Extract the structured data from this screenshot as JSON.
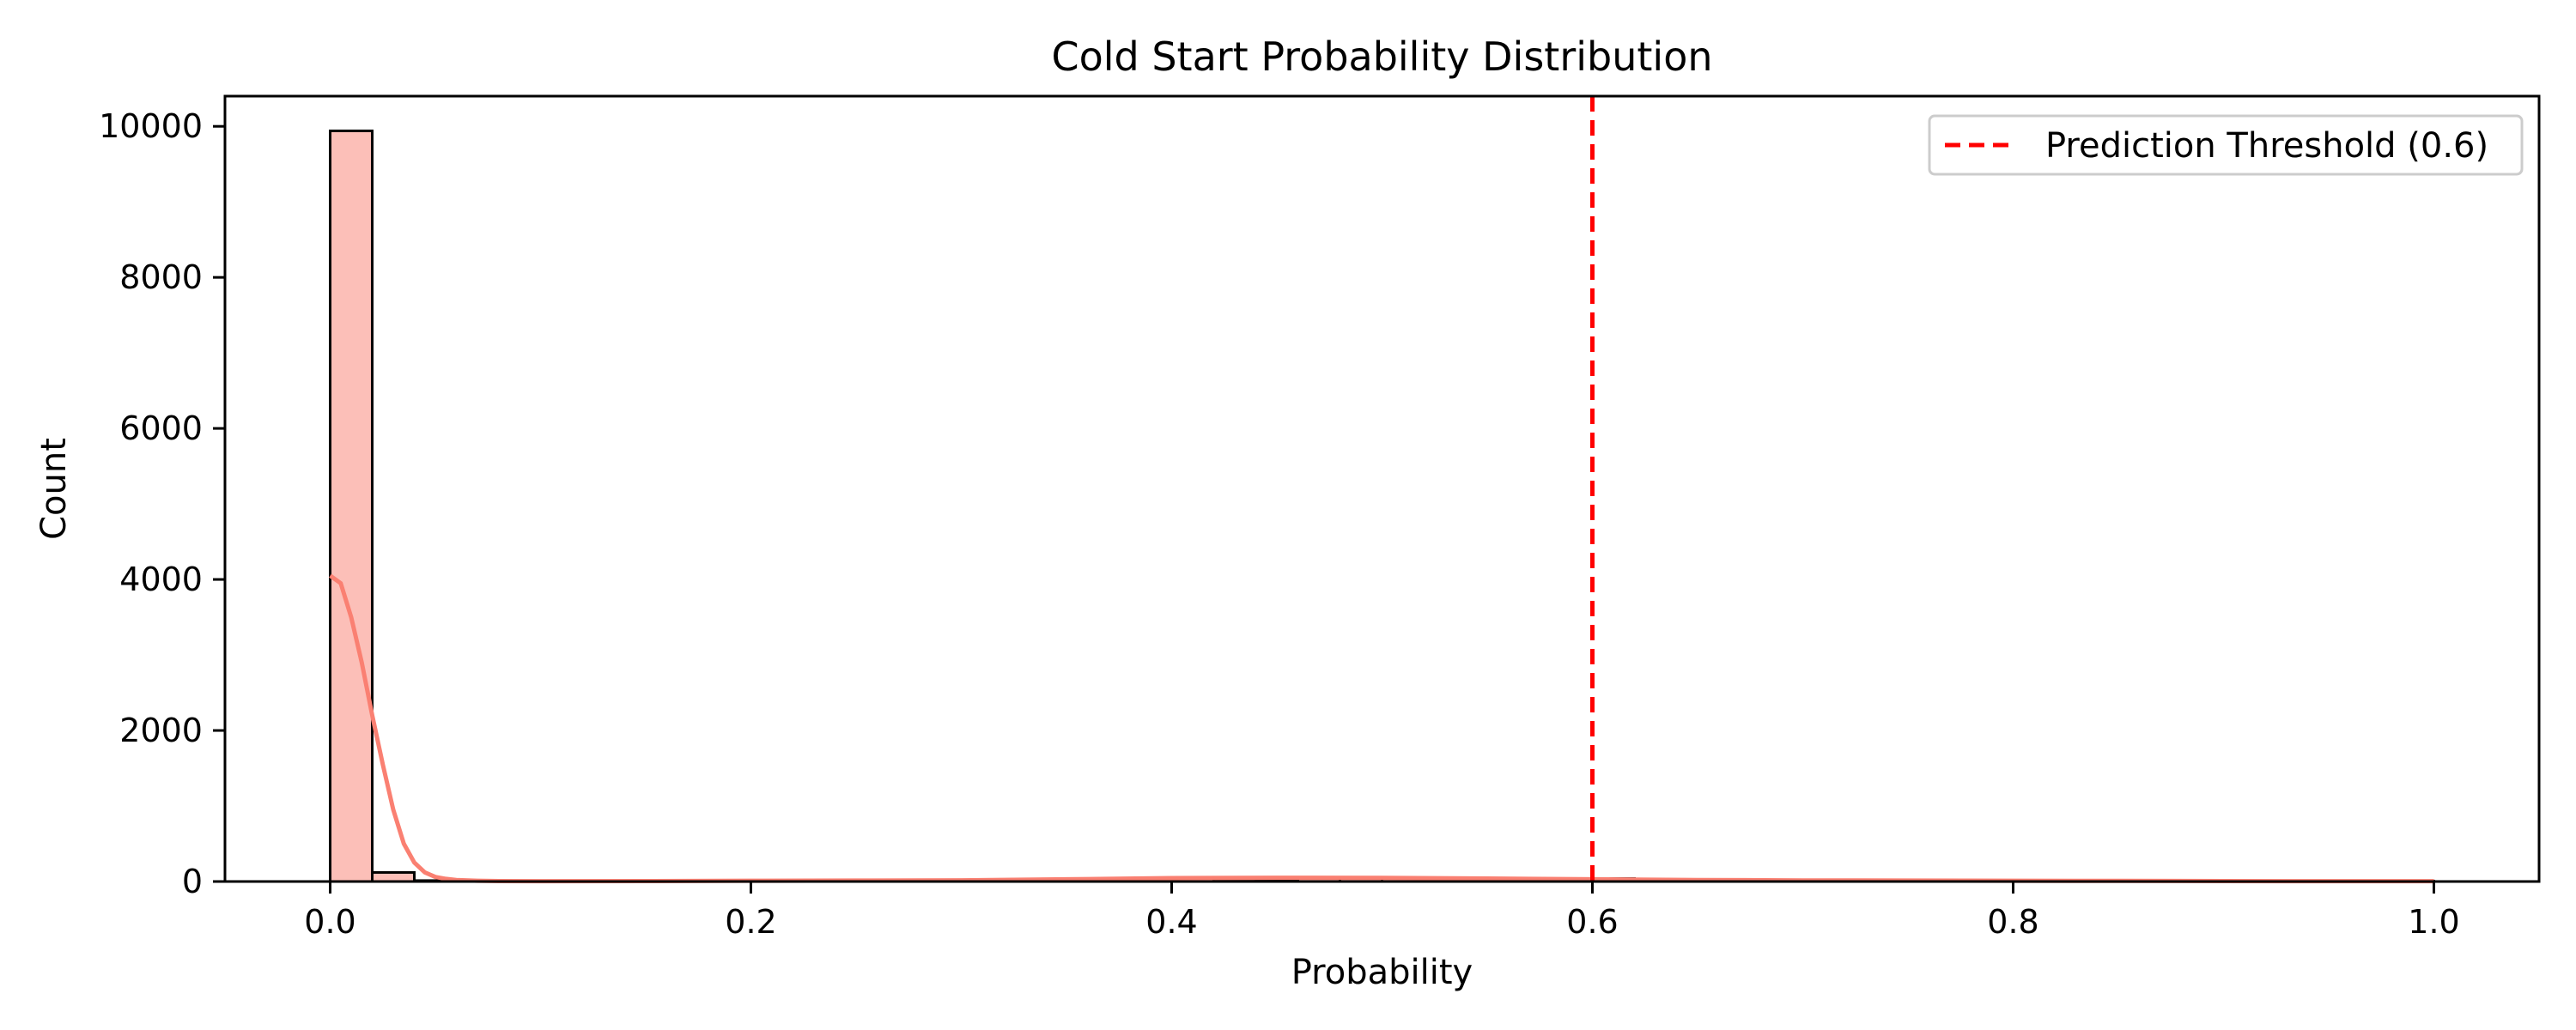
{
  "chart_data": {
    "type": "bar",
    "title": "Cold Start Probability Distribution",
    "xlabel": "Probability",
    "ylabel": "Count",
    "xlim": [
      -0.05,
      1.05
    ],
    "ylim": [
      0,
      10400
    ],
    "xticks": [
      0.0,
      0.2,
      0.4,
      0.6,
      0.8,
      1.0
    ],
    "xtick_labels": [
      "0.0",
      "0.2",
      "0.4",
      "0.6",
      "0.8",
      "1.0"
    ],
    "yticks": [
      0,
      2000,
      4000,
      6000,
      8000,
      10000
    ],
    "ytick_labels": [
      "0",
      "2000",
      "4000",
      "6000",
      "8000",
      "10000"
    ],
    "bin_edges": [
      0.0,
      0.02,
      0.04,
      0.06,
      0.08,
      0.1,
      0.12,
      0.14,
      0.16,
      0.18,
      0.2,
      0.22,
      0.24,
      0.26,
      0.28,
      0.3,
      0.32,
      0.34,
      0.36,
      0.38,
      0.4,
      0.42,
      0.44,
      0.46,
      0.48,
      0.5,
      0.52,
      0.54,
      0.56,
      0.58,
      0.6,
      0.62,
      0.64,
      0.66,
      0.68,
      0.7,
      0.72,
      0.74,
      0.76,
      0.78,
      0.8,
      0.82,
      0.84,
      0.86,
      0.88,
      0.9,
      0.92,
      0.94,
      0.96,
      0.98,
      1.0
    ],
    "counts": [
      9940,
      120,
      12,
      8,
      6,
      6,
      6,
      6,
      8,
      10,
      12,
      10,
      8,
      6,
      8,
      10,
      12,
      14,
      20,
      30,
      40,
      35,
      30,
      45,
      55,
      40,
      35,
      30,
      25,
      20,
      40,
      20,
      15,
      10,
      8,
      15,
      10,
      8,
      6,
      8,
      10,
      8,
      6,
      8,
      12,
      8,
      6,
      6,
      5,
      6
    ],
    "kde": {
      "x": [
        0.0,
        0.005,
        0.01,
        0.015,
        0.02,
        0.025,
        0.03,
        0.035,
        0.04,
        0.045,
        0.05,
        0.055,
        0.06,
        0.07,
        0.08,
        0.1,
        0.15,
        0.2,
        0.25,
        0.3,
        0.35,
        0.4,
        0.45,
        0.5,
        0.55,
        0.6,
        0.65,
        0.7,
        0.75,
        0.8,
        0.85,
        0.9,
        0.95,
        1.0
      ],
      "y": [
        4050,
        3950,
        3500,
        2900,
        2200,
        1550,
        950,
        500,
        250,
        120,
        60,
        35,
        20,
        10,
        6,
        4,
        6,
        10,
        12,
        16,
        30,
        45,
        50,
        48,
        40,
        30,
        20,
        15,
        12,
        10,
        8,
        6,
        5,
        4
      ]
    },
    "threshold": {
      "value": 0.6,
      "label": "Prediction Threshold (0.6)"
    },
    "legend_position": "top-right",
    "grid": false,
    "colors": {
      "bar_fill": "#fa8072",
      "bar_fill_alpha": 0.5,
      "bar_edge": "#000000",
      "kde_line": "#fa8072",
      "threshold_line": "#ff0000"
    }
  }
}
